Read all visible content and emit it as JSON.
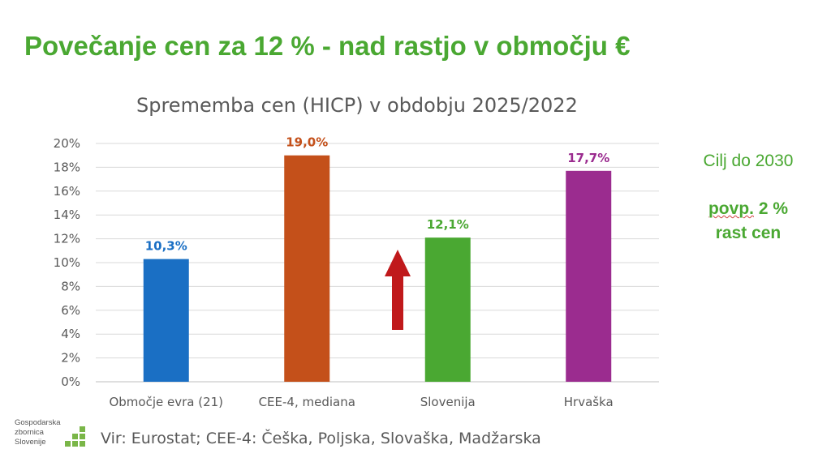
{
  "slide_title": "Povečanje cen za 12 % - nad rastjo v območju €",
  "side_note": {
    "line1": "Cilj do 2030",
    "line2_a": "povp.",
    "line2_b": " 2 %",
    "line3": "rast cen"
  },
  "source": "Vir: Eurostat; CEE-4: Češka, Poljska, Slovaška, Madžarska",
  "logo": {
    "line1": "Gospodarska",
    "line2": "zbornica",
    "line3": "Slovenije"
  },
  "chart_data": {
    "type": "bar",
    "title": "Sprememba cen (HICP) v obdobju 2025/2022",
    "categories": [
      "Območje evra (21)",
      "CEE-4, mediana",
      "Slovenija",
      "Hrvaška"
    ],
    "values": [
      10.3,
      19.0,
      12.1,
      17.7
    ],
    "value_labels": [
      "10,3%",
      "19,0%",
      "12,1%",
      "17,7%"
    ],
    "colors": [
      "#1a6fc4",
      "#c4501a",
      "#4aa832",
      "#9b2c8f"
    ],
    "ylim": [
      0,
      20
    ],
    "yticks": [
      0,
      2,
      4,
      6,
      8,
      10,
      12,
      14,
      16,
      18,
      20
    ],
    "ytick_labels": [
      "0%",
      "2%",
      "4%",
      "6%",
      "8%",
      "10%",
      "12%",
      "14%",
      "16%",
      "18%",
      "20%"
    ],
    "grid": true,
    "arrow_color": "#c0191b"
  }
}
